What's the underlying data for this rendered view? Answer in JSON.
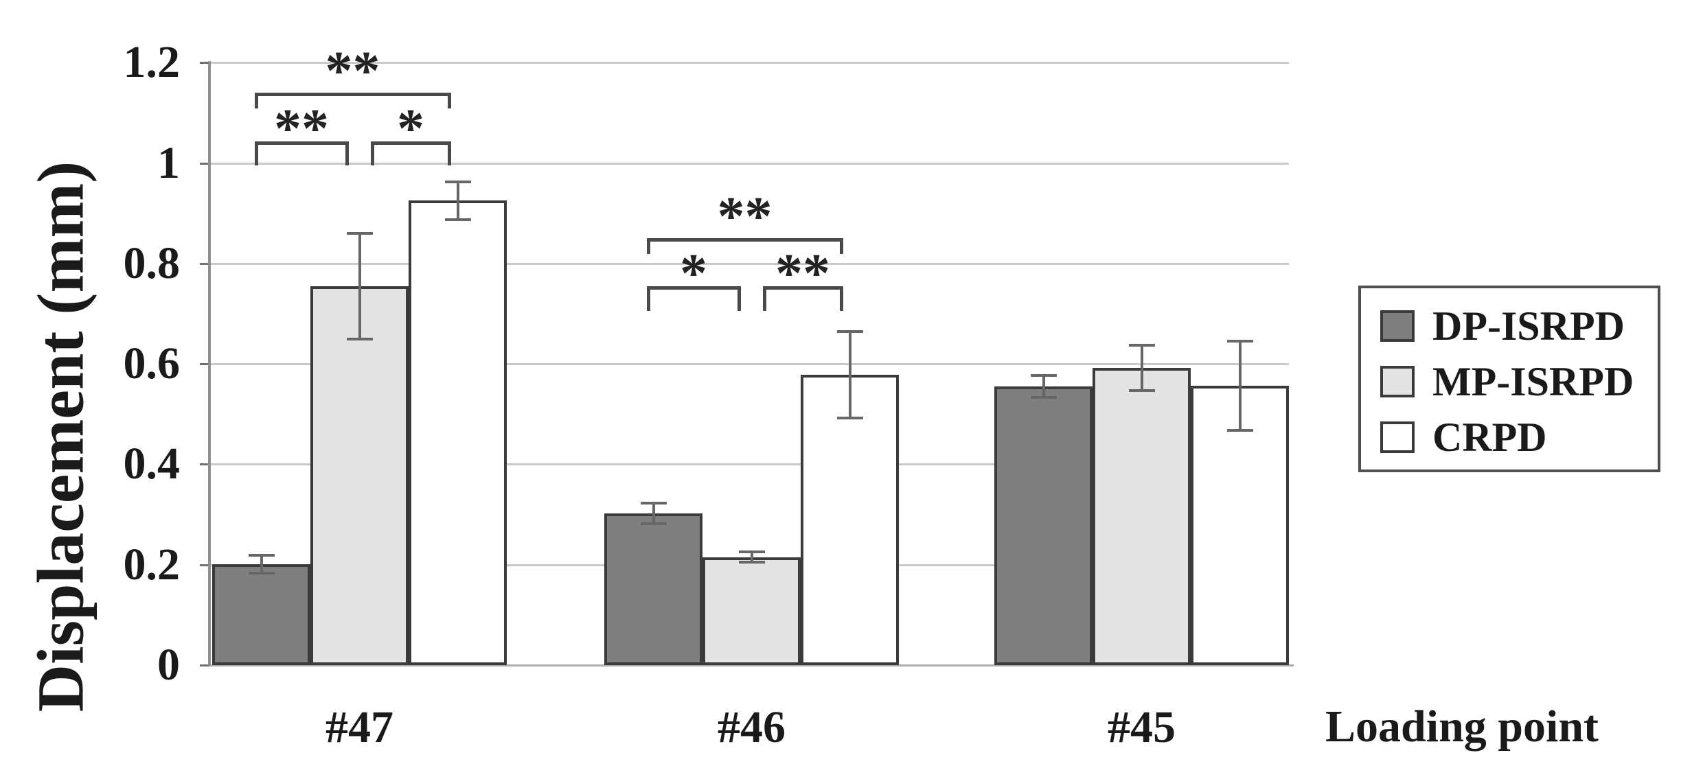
{
  "chart_data": {
    "type": "bar",
    "ylabel": "Displacement (mm)",
    "xlabel": "Loading point",
    "ylim": [
      0,
      1.2
    ],
    "ytick_values": [
      0,
      0.2,
      0.4,
      0.6,
      0.8,
      1,
      1.2
    ],
    "ytick_labels": [
      "0",
      "0.2",
      "0.4",
      "0.6",
      "0.8",
      "1",
      "1.2"
    ],
    "categories": [
      "#47",
      "#46",
      "#45"
    ],
    "grid": true,
    "legend_position": "right",
    "series": [
      {
        "name": "DP-ISRPD",
        "color": "#7f7f7f",
        "border": "#3b3b3b",
        "values": [
          0.201,
          0.302,
          0.555
        ],
        "errors": [
          0.018,
          0.02,
          0.022
        ]
      },
      {
        "name": "MP-ISRPD",
        "color": "#e4e4e4",
        "border": "#3b3b3b",
        "values": [
          0.755,
          0.215,
          0.592
        ],
        "errors": [
          0.105,
          0.01,
          0.045
        ]
      },
      {
        "name": "CRPD",
        "color": "#ffffff",
        "border": "#3b3b3b",
        "values": [
          0.925,
          0.578,
          0.556
        ],
        "errors": [
          0.038,
          0.086,
          0.089
        ]
      }
    ],
    "significance": [
      {
        "category": "#47",
        "pairs": [
          {
            "from": 0,
            "to": 1,
            "label": "**",
            "row": "low"
          },
          {
            "from": 1,
            "to": 2,
            "label": "*",
            "row": "low"
          },
          {
            "from": 0,
            "to": 2,
            "label": "**",
            "row": "high"
          }
        ]
      },
      {
        "category": "#46",
        "pairs": [
          {
            "from": 0,
            "to": 1,
            "label": "*",
            "row": "low"
          },
          {
            "from": 1,
            "to": 2,
            "label": "**",
            "row": "low"
          },
          {
            "from": 0,
            "to": 2,
            "label": "**",
            "row": "high"
          }
        ]
      }
    ]
  }
}
